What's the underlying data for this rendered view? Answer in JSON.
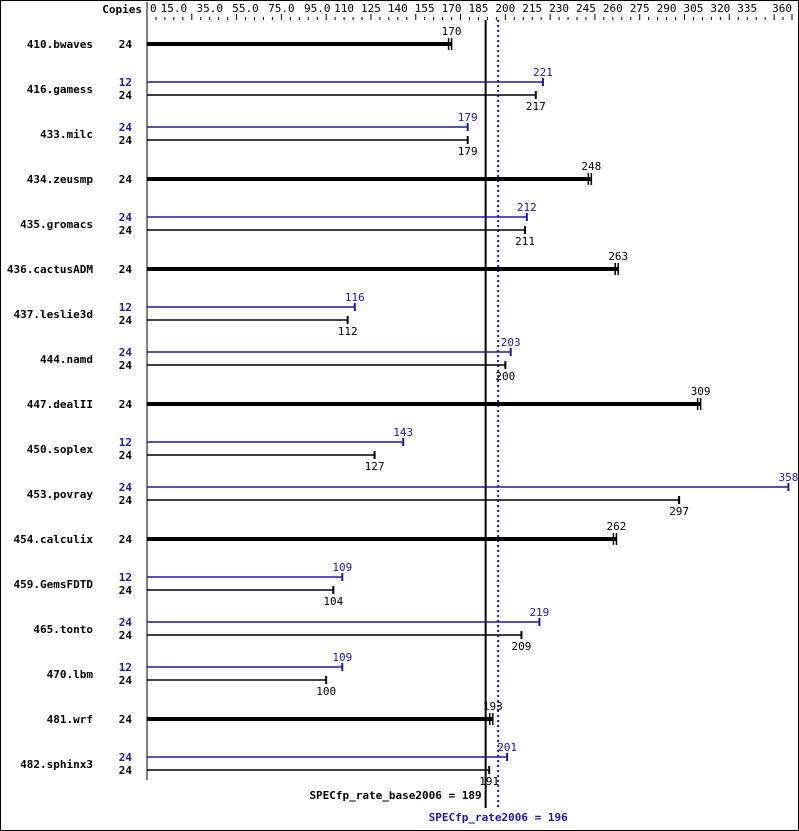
{
  "chart_data": {
    "type": "bar",
    "orientation": "horizontal",
    "copies_header": "Copies",
    "xlim": [
      0,
      360
    ],
    "tick_labels": [
      "0",
      "15.0",
      "35.0",
      "55.0",
      "75.0",
      "95.0",
      "110",
      "125",
      "140",
      "155",
      "170",
      "185",
      "200",
      "215",
      "230",
      "245",
      "260",
      "275",
      "290",
      "305",
      "320",
      "335",
      "360"
    ],
    "tick_values": [
      0,
      15,
      35,
      55,
      75,
      95,
      110,
      125,
      140,
      155,
      170,
      185,
      200,
      215,
      230,
      245,
      260,
      275,
      290,
      305,
      320,
      335,
      360
    ],
    "colors": {
      "base": "#000000",
      "peak": "#1a1aaa"
    },
    "benchmarks": [
      {
        "name": "410.bwaves",
        "base_copies": "24",
        "base": 170
      },
      {
        "name": "416.gamess",
        "peak_copies": "12",
        "peak": 221,
        "base_copies": "24",
        "base": 217
      },
      {
        "name": "433.milc",
        "peak_copies": "24",
        "peak": 179,
        "base_copies": "24",
        "base": 179
      },
      {
        "name": "434.zeusmp",
        "base_copies": "24",
        "base": 248
      },
      {
        "name": "435.gromacs",
        "peak_copies": "24",
        "peak": 212,
        "base_copies": "24",
        "base": 211
      },
      {
        "name": "436.cactusADM",
        "base_copies": "24",
        "base": 263
      },
      {
        "name": "437.leslie3d",
        "peak_copies": "12",
        "peak": 116,
        "base_copies": "24",
        "base": 112
      },
      {
        "name": "444.namd",
        "peak_copies": "24",
        "peak": 203,
        "base_copies": "24",
        "base": 200
      },
      {
        "name": "447.dealII",
        "base_copies": "24",
        "base": 309
      },
      {
        "name": "450.soplex",
        "peak_copies": "12",
        "peak": 143,
        "base_copies": "24",
        "base": 127
      },
      {
        "name": "453.povray",
        "peak_copies": "24",
        "peak": 358,
        "base_copies": "24",
        "base": 297
      },
      {
        "name": "454.calculix",
        "base_copies": "24",
        "base": 262
      },
      {
        "name": "459.GemsFDTD",
        "peak_copies": "12",
        "peak": 109,
        "base_copies": "24",
        "base": 104
      },
      {
        "name": "465.tonto",
        "peak_copies": "24",
        "peak": 219,
        "base_copies": "24",
        "base": 209
      },
      {
        "name": "470.lbm",
        "peak_copies": "12",
        "peak": 109,
        "base_copies": "24",
        "base": 100
      },
      {
        "name": "481.wrf",
        "base_copies": "24",
        "base": 193
      },
      {
        "name": "482.sphinx3",
        "peak_copies": "24",
        "peak": 201,
        "base_copies": "24",
        "base": 191
      }
    ],
    "base_summary": {
      "label": "SPECfp_rate_base2006 = 189",
      "value": 189
    },
    "peak_summary": {
      "label": "SPECfp_rate2006 = 196",
      "value": 196
    }
  }
}
